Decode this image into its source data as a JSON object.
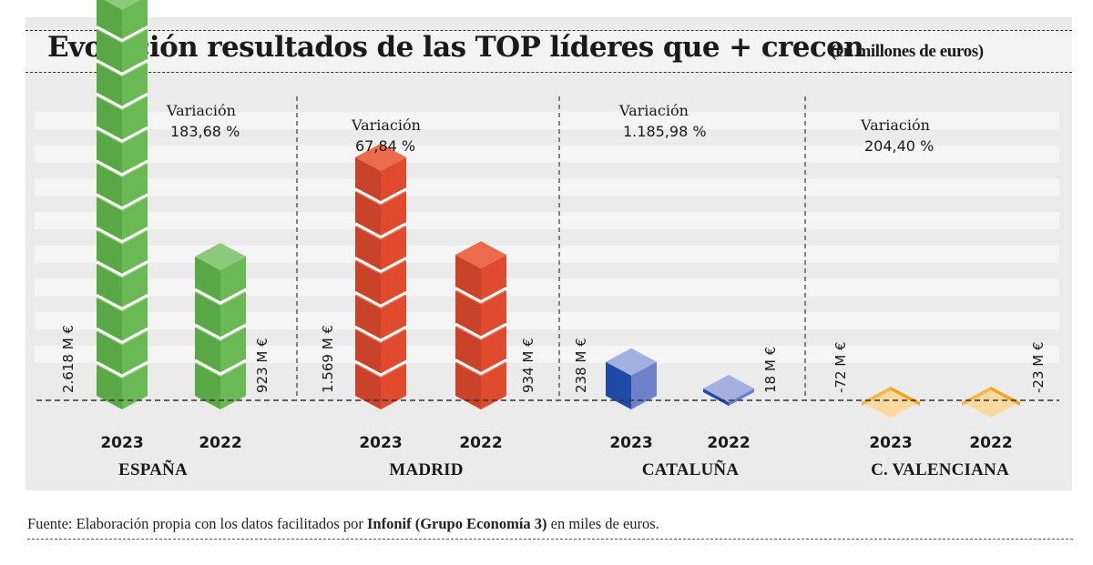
{
  "title": "Evolución resultados de las TOP líderes que + crecen",
  "subtitle": "(en millones de euros)",
  "source": {
    "prefix": "Fuente: Elaboración propia con los datos facilitados por ",
    "bold": "Infonif (Grupo Economía 3)",
    "suffix": " en miles de euros."
  },
  "colors": {
    "espana": {
      "top": "#8cc97a",
      "left": "#5aa845",
      "right": "#6ab955"
    },
    "madrid": {
      "top": "#ec6b4c",
      "left": "#c9432a",
      "right": "#e04a2e"
    },
    "cataluna": {
      "top": "#a3b0e0",
      "left": "#1f4aa8",
      "right": "#6d80c9"
    },
    "valenciana": {
      "top": "#fdd9a0",
      "left": "#f6b647",
      "right": "#f0a520"
    }
  },
  "chart_data": {
    "type": "bar",
    "title": "Evolución resultados de las TOP líderes que + crecen",
    "subtitle": "(en millones de euros)",
    "xlabel": "",
    "ylabel": "",
    "unit": "M €",
    "grid": true,
    "variation_label": "Variación",
    "groups": [
      {
        "name": "ESPAÑA",
        "key": "espana",
        "variation": "183,68 %",
        "bars": [
          {
            "year": "2023",
            "value": 2618,
            "label": "2.618 M €"
          },
          {
            "year": "2022",
            "value": 923,
            "label": "923 M €"
          }
        ]
      },
      {
        "name": "MADRID",
        "key": "madrid",
        "variation": "67,84 %",
        "bars": [
          {
            "year": "2023",
            "value": 1569,
            "label": "1.569 M €"
          },
          {
            "year": "2022",
            "value": 934,
            "label": "934 M €"
          }
        ]
      },
      {
        "name": "CATALUÑA",
        "key": "cataluna",
        "variation": "1.185,98 %",
        "bars": [
          {
            "year": "2023",
            "value": 238,
            "label": "238 M €"
          },
          {
            "year": "2022",
            "value": 18,
            "label": "18 M €"
          }
        ]
      },
      {
        "name": "C. VALENCIANA",
        "key": "valenciana",
        "variation": "204,40 %",
        "bars": [
          {
            "year": "2023",
            "value": -72,
            "label": "-72 M €"
          },
          {
            "year": "2022",
            "value": -23,
            "label": "-23 M €"
          }
        ]
      }
    ]
  }
}
